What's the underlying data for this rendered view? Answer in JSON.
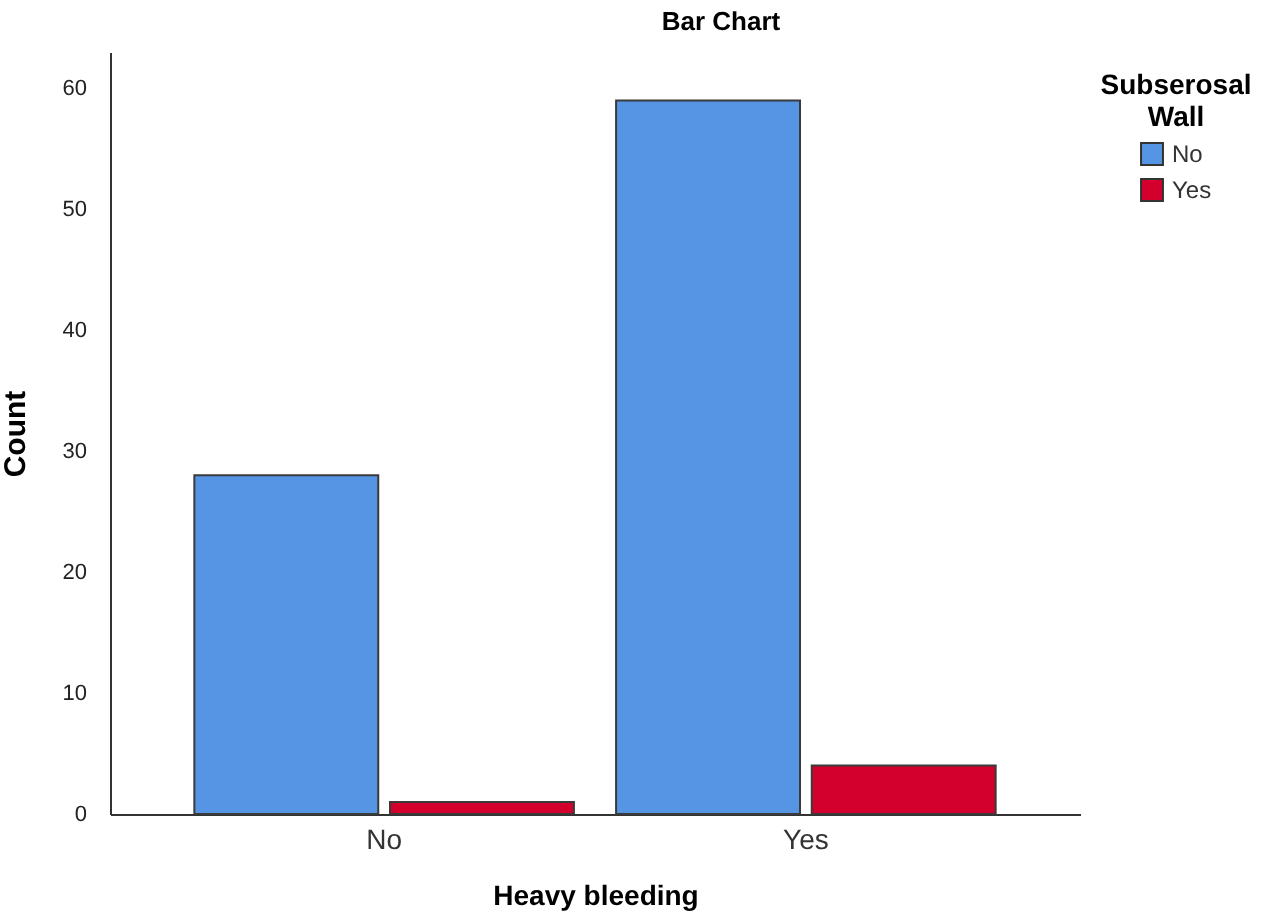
{
  "chart_data": {
    "type": "bar",
    "title": "Bar Chart",
    "xlabel": "Heavy bleeding",
    "ylabel": "Count",
    "legend_title": "Subserosal Wall",
    "legend": "top right",
    "grid": false,
    "categories": [
      "No",
      "Yes"
    ],
    "series": [
      {
        "name": "No",
        "color": "#5595e3",
        "values": [
          28,
          59
        ]
      },
      {
        "name": "Yes",
        "color": "#d3002d",
        "values": [
          1,
          4
        ]
      }
    ],
    "ylim": [
      0,
      63
    ],
    "yticks": [
      0,
      10,
      20,
      30,
      40,
      50,
      60
    ]
  }
}
